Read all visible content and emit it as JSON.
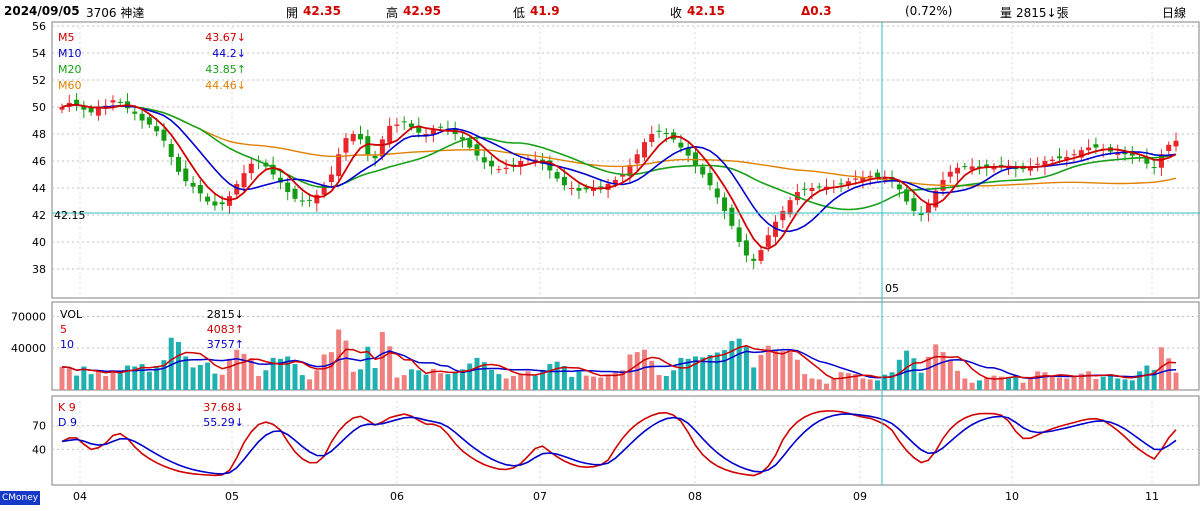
{
  "header": {
    "date": "2024/09/05",
    "stock": "3706 神達",
    "open_label": "開",
    "open": "42.35",
    "high_label": "高",
    "high": "42.95",
    "low_label": "低",
    "low": "41.9",
    "close_label": "收",
    "close": "42.15",
    "change": "Δ0.3",
    "change_pct": "(0.72%)",
    "volume_label": "量",
    "volume": "2815↓張",
    "period": "日線"
  },
  "brand": "CMoney",
  "colors": {
    "up": "#e8262b",
    "down": "#139b13",
    "m5": "#d00000",
    "m10": "#0000cc",
    "m20": "#18a018",
    "m60": "#e08000",
    "vol_up": "#f08080",
    "vol_down": "#20b0b0",
    "crosshair": "#30c0c0"
  },
  "chart_data": {
    "type": "candlestick",
    "x_ticks": [
      "04",
      "05",
      "06",
      "07",
      "08",
      "09",
      "10",
      "11"
    ],
    "crosshair": {
      "label": "05",
      "value_label": "42.15"
    },
    "price": {
      "ylim": [
        36,
        56
      ],
      "y_ticks": [
        38,
        40,
        42,
        44,
        46,
        48,
        50,
        52,
        54,
        56
      ],
      "legend": [
        {
          "name": "M5",
          "value": "43.67↓"
        },
        {
          "name": "M10",
          "value": "44.2↓"
        },
        {
          "name": "M20",
          "value": "43.85↑"
        },
        {
          "name": "M60",
          "value": "44.46↓"
        }
      ]
    },
    "volume": {
      "y_ticks": [
        40000,
        70000
      ],
      "legend": [
        {
          "name": "VOL",
          "value": "2815↓"
        },
        {
          "name": "5",
          "value": "4083↑"
        },
        {
          "name": "10",
          "value": "3757↑"
        }
      ]
    },
    "kd": {
      "y_ticks": [
        40,
        70
      ],
      "legend": [
        {
          "name": "K 9",
          "value": "37.68↓"
        },
        {
          "name": "D 9",
          "value": "55.29↓"
        }
      ]
    },
    "closes": [
      50.0,
      50.3,
      50.2,
      49.8,
      49.6,
      49.9,
      50.1,
      50.5,
      50.3,
      49.9,
      49.5,
      49.0,
      48.7,
      48.2,
      47.5,
      46.3,
      45.2,
      44.5,
      44.1,
      43.6,
      43.0,
      42.7,
      42.8,
      43.4,
      44.3,
      45.1,
      45.8,
      46.0,
      45.6,
      45.0,
      44.4,
      43.7,
      43.2,
      43.0,
      43.1,
      43.5,
      44.2,
      45.0,
      46.5,
      47.7,
      48.0,
      47.6,
      46.5,
      46.2,
      47.6,
      48.6,
      48.7,
      48.9,
      48.5,
      48.1,
      48.0,
      48.3,
      48.5,
      48.3,
      48.0,
      47.6,
      47.0,
      46.4,
      45.9,
      45.6,
      45.4,
      45.5,
      45.7,
      46.0,
      46.2,
      46.1,
      45.8,
      45.3,
      44.7,
      44.2,
      44.0,
      43.8,
      43.9,
      44.0,
      44.1,
      44.3,
      44.6,
      45.0,
      45.7,
      46.5,
      47.4,
      48.0,
      48.2,
      48.0,
      47.6,
      47.0,
      46.4,
      45.7,
      45.0,
      44.2,
      43.3,
      42.3,
      41.2,
      40.0,
      39.0,
      38.6,
      39.4,
      40.5,
      41.5,
      42.3,
      43.1,
      43.7,
      43.9,
      44.0,
      44.1,
      44.1,
      44.1,
      44.3,
      44.5,
      44.7,
      44.8,
      44.9,
      44.8,
      44.7,
      44.5,
      43.9,
      43.0,
      42.3,
      42.0,
      42.8,
      43.8,
      44.6,
      45.2,
      45.5,
      45.6,
      45.6,
      45.5,
      45.5,
      45.6,
      45.7,
      45.6,
      45.4,
      45.4,
      45.6,
      45.8,
      46.0,
      46.1,
      46.2,
      46.3,
      46.5,
      46.8,
      47.0,
      47.0,
      46.9,
      46.7,
      46.6,
      46.5,
      46.4,
      46.2,
      45.8,
      45.5,
      46.5,
      47.2,
      47.5
    ],
    "vol_ticks_max": 70000
  }
}
